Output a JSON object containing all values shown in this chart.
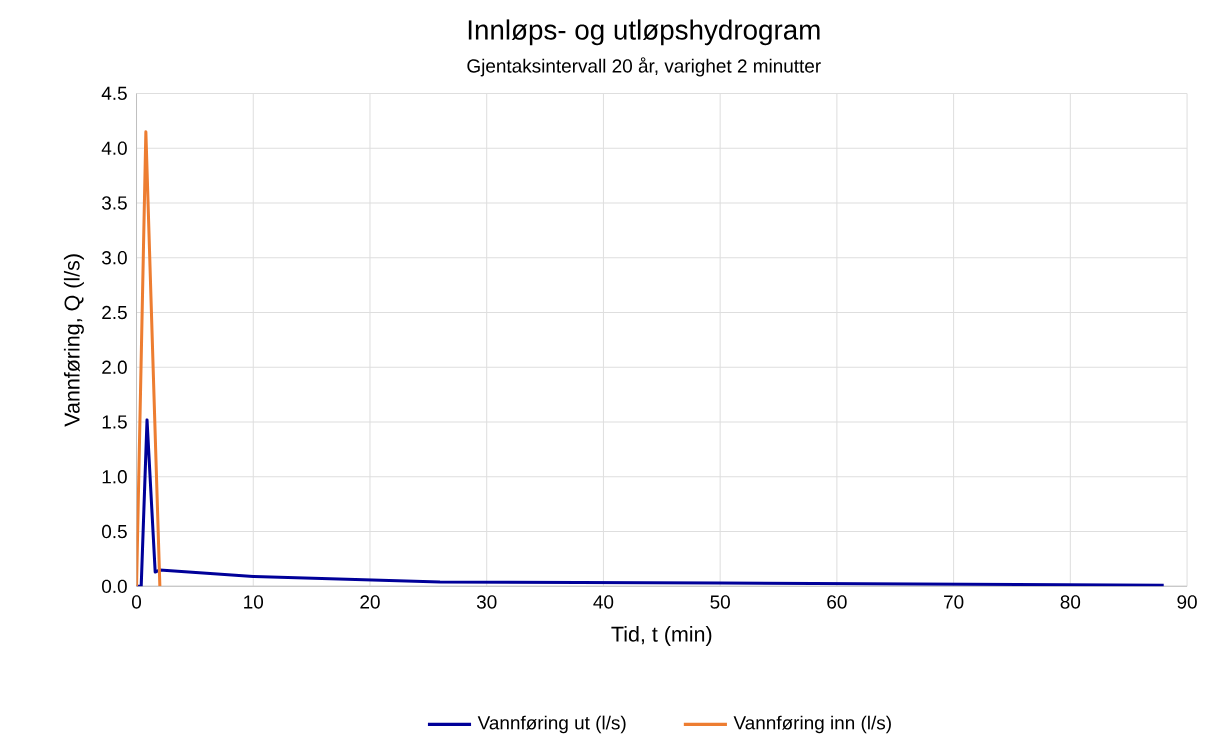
{
  "chart_data": {
    "type": "line",
    "title": "Innløps- og utløpshydrogram",
    "subtitle": "Gjentaksintervall 20 år, varighet 2 minutter",
    "xlabel": "Tid, t (min)",
    "ylabel": "Vannføring, Q (l/s)",
    "xlim": [
      0,
      90
    ],
    "xticks": [
      0,
      10,
      20,
      30,
      40,
      50,
      60,
      70,
      80,
      90
    ],
    "ylim": [
      0,
      4.5
    ],
    "yticks": [
      {
        "value": 0,
        "label": "0.0"
      },
      {
        "value": 0.5,
        "label": "0.5"
      },
      {
        "value": 1,
        "label": "1.0"
      },
      {
        "value": 1.5,
        "label": "1.5"
      },
      {
        "value": 2,
        "label": "2.0"
      },
      {
        "value": 2.5,
        "label": "2.5"
      },
      {
        "value": 3,
        "label": "3.0"
      },
      {
        "value": 3.5,
        "label": "3.5"
      },
      {
        "value": 4,
        "label": "4.0"
      },
      {
        "value": 4.5,
        "label": "4.5"
      }
    ],
    "grid": true,
    "legend": "bottom",
    "marker": "none",
    "line_style": "solid",
    "series": [
      {
        "name": "Vannføring ut (l/s)",
        "color": "#000099",
        "x": [
          0,
          0.4,
          0.9,
          1.6,
          2,
          10,
          26,
          50,
          88
        ],
        "values": [
          0,
          0,
          1.52,
          0.13,
          0.15,
          0.09,
          0.04,
          0.03,
          0.01
        ]
      },
      {
        "name": "Vannføring inn (l/s)",
        "color": "#ed7d31",
        "x": [
          0,
          0.8,
          2
        ],
        "values": [
          0,
          4.15,
          0
        ]
      }
    ]
  }
}
